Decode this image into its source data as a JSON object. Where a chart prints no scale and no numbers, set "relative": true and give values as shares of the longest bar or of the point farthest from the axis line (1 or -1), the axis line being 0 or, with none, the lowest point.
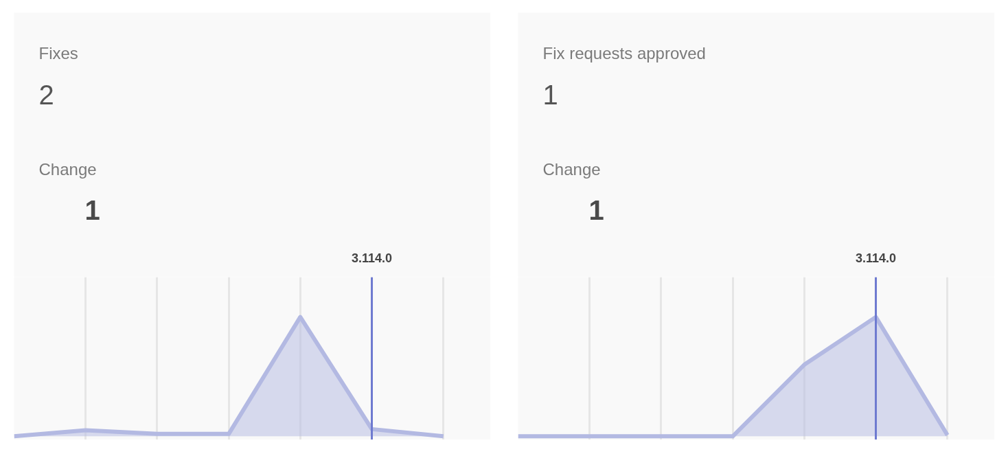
{
  "chart_data": [
    {
      "type": "area",
      "title": "Fixes",
      "subtitle": "2",
      "annotations": [
        "Change",
        "1"
      ],
      "relative": true,
      "grid": "x",
      "categories": [
        null,
        null,
        null,
        null,
        null,
        null,
        null
      ],
      "series": [
        {
          "color": "#b3b9e2",
          "values": [
            0,
            0.05,
            0.02,
            0.02,
            1,
            0.06,
            0
          ]
        }
      ],
      "ref_lines": [
        {
          "axis": "x",
          "label": "3.114.0",
          "color": "#6e7ad0"
        }
      ]
    },
    {
      "type": "area",
      "title": "Fix requests approved",
      "subtitle": "1",
      "annotations": [
        "Change",
        "1"
      ],
      "relative": true,
      "grid": "x",
      "categories": [
        null,
        null,
        null,
        null,
        null,
        null,
        null
      ],
      "series": [
        {
          "color": "#b3b9e2",
          "values": [
            0,
            0,
            0,
            0,
            0.6,
            1,
            0.01
          ]
        }
      ],
      "ref_lines": [
        {
          "axis": "x",
          "label": "3.114.0",
          "color": "#6e7ad0"
        }
      ]
    }
  ]
}
